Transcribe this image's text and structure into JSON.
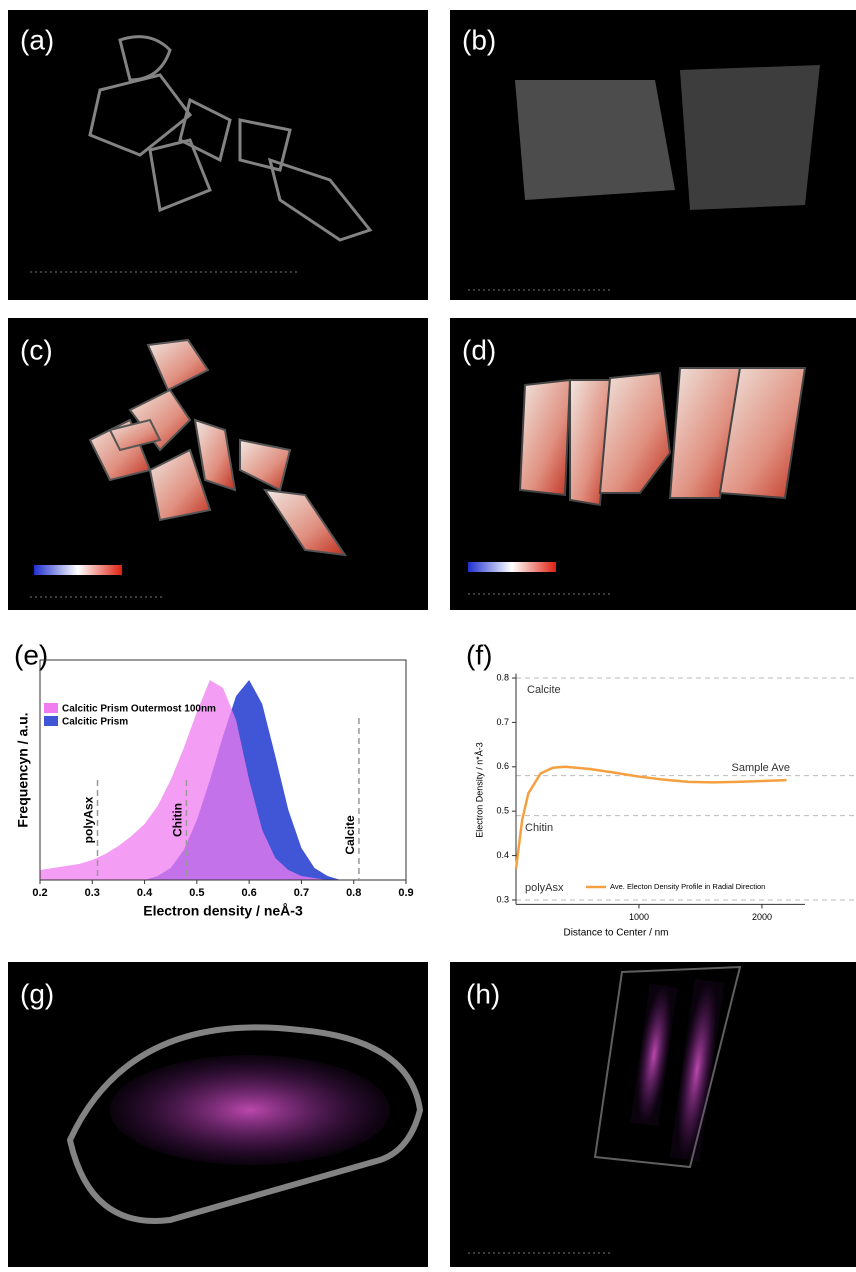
{
  "panel_labels": [
    "(a)",
    "(b)",
    "(c)",
    "(d)",
    "(e)",
    "(f)",
    "(g)",
    "(h)"
  ],
  "chart_data": [
    {
      "type": "area",
      "xlabel": "Electron density / neÅ-3",
      "ylabel": "Frequencyn / a.u.",
      "x": [
        0.2,
        0.225,
        0.25,
        0.275,
        0.3,
        0.325,
        0.35,
        0.375,
        0.4,
        0.425,
        0.45,
        0.475,
        0.5,
        0.525,
        0.55,
        0.575,
        0.6,
        0.625,
        0.65,
        0.675,
        0.7,
        0.725,
        0.75,
        0.775,
        0.8
      ],
      "series": [
        {
          "name": "Calcitic Prism",
          "color": "#4056d6",
          "values": [
            0,
            0,
            0,
            0,
            0,
            0,
            0,
            0,
            0,
            2,
            6,
            15,
            30,
            50,
            72,
            92,
            100,
            88,
            62,
            35,
            16,
            6,
            2,
            0,
            0
          ]
        },
        {
          "name": "Calcitic Prism Outermost 100nm",
          "color": "#f07cf0",
          "values": [
            5,
            6,
            7,
            8,
            10,
            13,
            17,
            22,
            28,
            37,
            50,
            66,
            84,
            100,
            96,
            80,
            50,
            25,
            11,
            5,
            2,
            1,
            0,
            0,
            0
          ]
        }
      ],
      "xlim": [
        0.2,
        0.9
      ],
      "xticks": [
        0.2,
        0.3,
        0.4,
        0.5,
        0.6,
        0.7,
        0.8,
        0.9
      ],
      "ylim": [
        0,
        110
      ],
      "reference_lines": [
        {
          "label": "polyAsx",
          "value": 0.31
        },
        {
          "label": "Chitin",
          "value": 0.48
        },
        {
          "label": "Calcite",
          "value": 0.81
        }
      ]
    },
    {
      "type": "line",
      "xlabel": "Distance to Center / nm",
      "ylabel": "Electron Density / n*Å-3",
      "x": [
        0,
        50,
        100,
        200,
        300,
        400,
        600,
        800,
        1000,
        1200,
        1400,
        1600,
        1800,
        2000,
        2200
      ],
      "series": [
        {
          "name": "Ave. Electon Density Profile in Radial Direction",
          "color": "#f5a040",
          "values": [
            0.37,
            0.48,
            0.54,
            0.585,
            0.598,
            0.6,
            0.595,
            0.587,
            0.578,
            0.571,
            0.566,
            0.565,
            0.566,
            0.568,
            0.57
          ]
        }
      ],
      "xlim": [
        0,
        2350
      ],
      "xticks": [
        1000,
        2000
      ],
      "ylim": [
        0.29,
        0.81
      ],
      "yticks": [
        0.3,
        0.4,
        0.5,
        0.6,
        0.7,
        0.8
      ],
      "reference_lines": [
        {
          "label": "Calcite",
          "value": 0.8
        },
        {
          "label": "Sample Ave",
          "value": 0.58
        },
        {
          "label": "Chitin",
          "value": 0.49
        },
        {
          "label": "polyAsx",
          "value": 0.3
        }
      ]
    }
  ]
}
